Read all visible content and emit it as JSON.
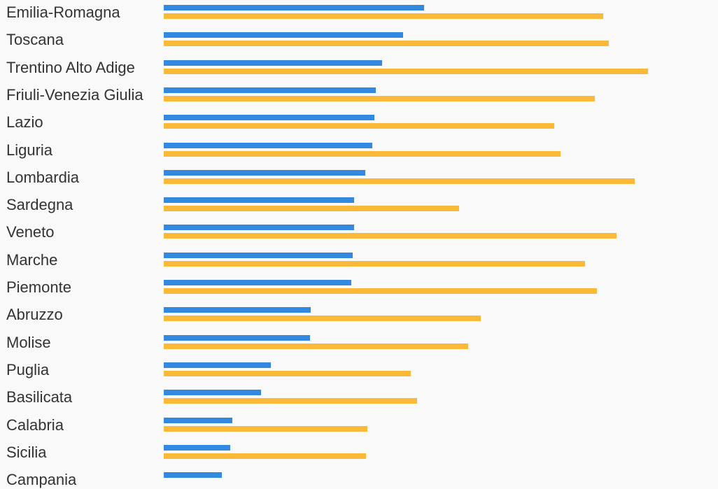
{
  "chart_data": {
    "type": "bar",
    "orientation": "horizontal",
    "categories": [
      "Emilia-Romagna",
      "Toscana",
      "Trentino Alto Adige",
      "Friuli-Venezia Giulia",
      "Lazio",
      "Liguria",
      "Lombardia",
      "Sardegna",
      "Veneto",
      "Marche",
      "Piemonte",
      "Abruzzo",
      "Molise",
      "Puglia",
      "Basilicata",
      "Calabria",
      "Sicilia",
      "Campania"
    ],
    "series": [
      {
        "color": "#3388e0",
        "values": [
          372,
          342,
          312,
          303,
          301,
          298,
          288,
          272,
          272,
          270,
          268,
          210,
          209,
          153,
          139,
          98,
          95,
          83
        ]
      },
      {
        "color": "#fbb93a",
        "values": [
          628,
          636,
          692,
          616,
          558,
          567,
          673,
          422,
          647,
          602,
          619,
          453,
          435,
          353,
          362,
          291,
          289,
          null
        ]
      }
    ],
    "xlim": [
      0,
      792
    ],
    "grid": false,
    "legend": "none"
  }
}
